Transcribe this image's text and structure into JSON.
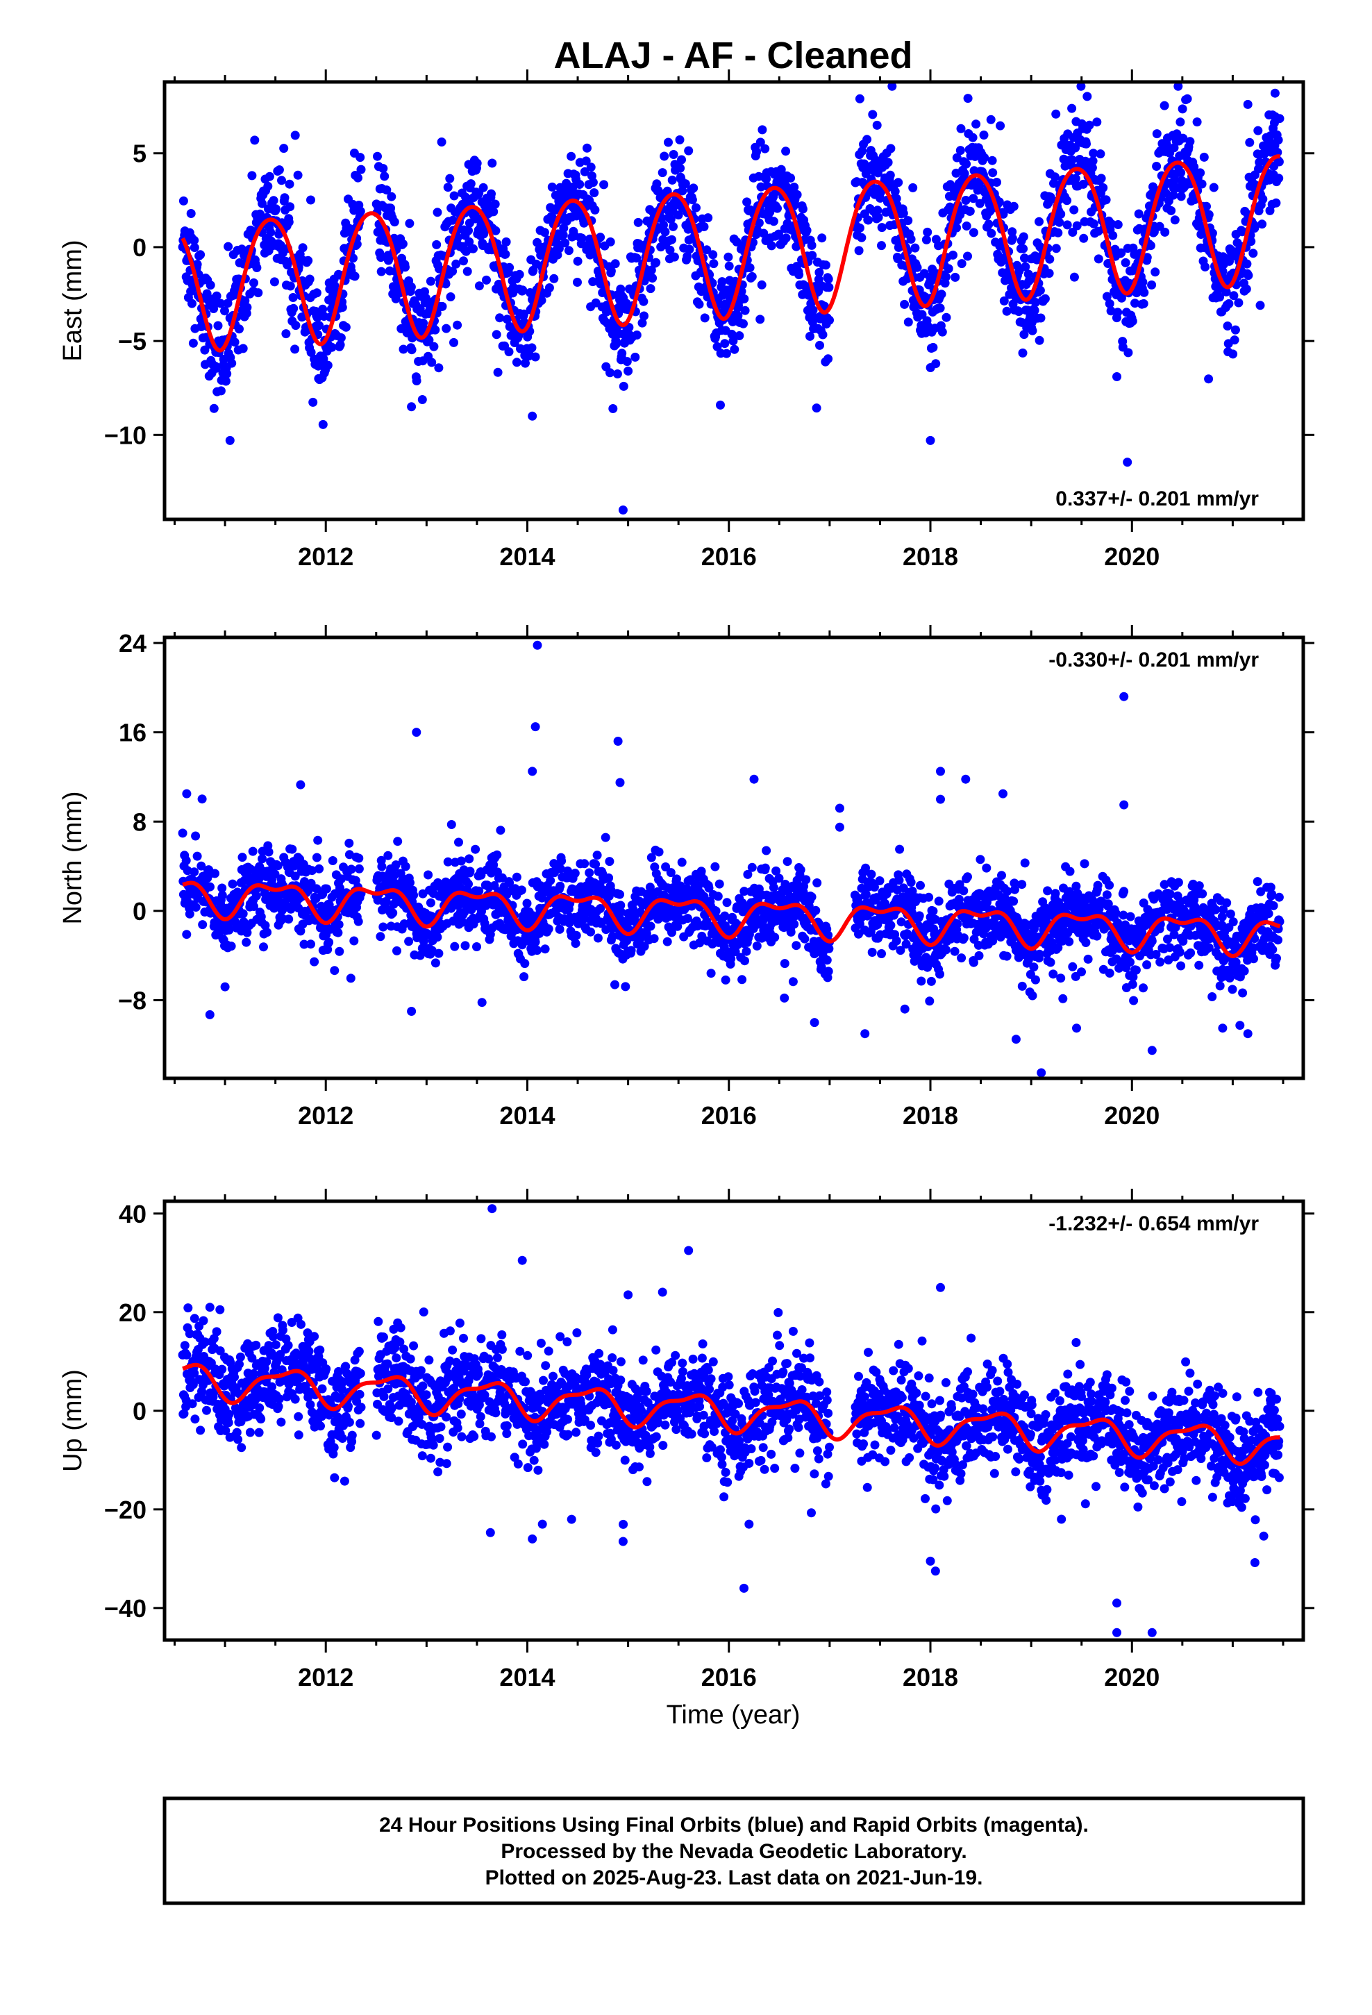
{
  "title": "ALAJ  - AF - Cleaned",
  "colors": {
    "points": "#0000ff",
    "fit": "#ff0000"
  },
  "chart_data": [
    {
      "type": "scatter",
      "panel": "east",
      "ylabel": "East (mm)",
      "xlim": [
        2010.4,
        2021.7
      ],
      "ylim": [
        -14.5,
        8.8
      ],
      "yticks": [
        -10,
        -5,
        0,
        5
      ],
      "xticks": [
        2012,
        2014,
        2016,
        2018,
        2020
      ],
      "rate_text": "0.337+/- 0.201 mm/yr",
      "rate_position": "bottom-right",
      "trend": {
        "t0": 2016.0,
        "offset": -0.05,
        "rate": 0.337,
        "annual_amp": 3.4,
        "annual_peak": 0.45,
        "semi_amp": 0.35,
        "semi_peak": 0.2
      },
      "scatter_sigma": 1.5,
      "x_range": [
        2010.58,
        2021.47
      ],
      "gaps": [
        [
          2012.35,
          2012.5
        ],
        [
          2017.0,
          2017.25
        ]
      ],
      "outliers": [
        [
          2011.05,
          -10.3
        ],
        [
          2012.85,
          -8.5
        ],
        [
          2014.05,
          -9.0
        ],
        [
          2014.95,
          -14.0
        ],
        [
          2014.85,
          -8.6
        ],
        [
          2013.15,
          5.6
        ],
        [
          2017.3,
          7.9
        ],
        [
          2018.0,
          -10.3
        ],
        [
          2019.85,
          -6.9
        ],
        [
          2020.55,
          7.9
        ],
        [
          2021.42,
          8.2
        ],
        [
          2021.15,
          7.6
        ]
      ]
    },
    {
      "type": "scatter",
      "panel": "north",
      "ylabel": "North (mm)",
      "xlim": [
        2010.4,
        2021.7
      ],
      "ylim": [
        -15.0,
        24.5
      ],
      "yticks": [
        -8,
        0,
        8,
        16,
        24
      ],
      "xticks": [
        2012,
        2014,
        2016,
        2018,
        2020
      ],
      "rate_text": "-0.330+/- 0.201 mm/yr",
      "rate_position": "top-right",
      "trend": {
        "t0": 2016.0,
        "offset": -0.3,
        "rate": -0.33,
        "annual_amp": 1.4,
        "annual_peak": 0.5,
        "semi_amp": 0.7,
        "semi_peak": 0.25
      },
      "scatter_sigma": 1.8,
      "x_range": [
        2010.58,
        2021.47
      ],
      "gaps": [
        [
          2012.35,
          2012.5
        ],
        [
          2017.0,
          2017.25
        ]
      ],
      "outliers": [
        [
          2010.62,
          10.5
        ],
        [
          2010.85,
          -9.3
        ],
        [
          2011.0,
          -6.8
        ],
        [
          2011.75,
          11.3
        ],
        [
          2012.9,
          16.0
        ],
        [
          2012.85,
          -9.0
        ],
        [
          2013.55,
          -8.2
        ],
        [
          2014.1,
          23.8
        ],
        [
          2014.08,
          16.5
        ],
        [
          2014.05,
          12.5
        ],
        [
          2014.9,
          15.2
        ],
        [
          2014.92,
          11.5
        ],
        [
          2016.25,
          11.8
        ],
        [
          2017.1,
          9.2
        ],
        [
          2017.1,
          7.5
        ],
        [
          2018.1,
          12.5
        ],
        [
          2018.1,
          10.0
        ],
        [
          2018.35,
          11.8
        ],
        [
          2018.72,
          10.5
        ],
        [
          2019.1,
          -14.5
        ],
        [
          2019.45,
          -10.5
        ],
        [
          2019.92,
          19.2
        ],
        [
          2019.92,
          9.5
        ],
        [
          2020.2,
          -12.5
        ],
        [
          2020.9,
          -10.5
        ],
        [
          2021.15,
          -11.0
        ],
        [
          2016.85,
          -10.0
        ],
        [
          2017.35,
          -11.0
        ],
        [
          2018.85,
          -11.5
        ]
      ]
    },
    {
      "type": "scatter",
      "panel": "up",
      "ylabel": "Up (mm)",
      "xlabel": "Time (year)",
      "xlim": [
        2010.4,
        2021.7
      ],
      "ylim": [
        -46.5,
        42.5
      ],
      "yticks": [
        -40,
        -20,
        0,
        20,
        40
      ],
      "xticks": [
        2012,
        2014,
        2016,
        2018,
        2020
      ],
      "rate_text": "-1.232+/- 0.654 mm/yr",
      "rate_position": "top-right",
      "trend": {
        "t0": 2016.0,
        "offset": -0.2,
        "rate": -1.232,
        "annual_amp": 3.2,
        "annual_peak": 0.6,
        "semi_amp": 1.2,
        "semi_peak": 0.3
      },
      "scatter_sigma": 5.0,
      "x_range": [
        2010.58,
        2021.47
      ],
      "gaps": [
        [
          2012.35,
          2012.5
        ],
        [
          2017.0,
          2017.25
        ]
      ],
      "outliers": [
        [
          2013.65,
          41.0
        ],
        [
          2013.95,
          30.5
        ],
        [
          2014.05,
          -26.0
        ],
        [
          2014.15,
          -23.0
        ],
        [
          2014.95,
          -26.5
        ],
        [
          2015.0,
          23.5
        ],
        [
          2015.6,
          32.5
        ],
        [
          2016.15,
          -36.0
        ],
        [
          2016.2,
          -23.0
        ],
        [
          2018.05,
          -32.5
        ],
        [
          2018.0,
          -30.5
        ],
        [
          2018.1,
          25.0
        ],
        [
          2019.85,
          -39.0
        ],
        [
          2019.85,
          -45.0
        ],
        [
          2020.2,
          -45.0
        ],
        [
          2019.3,
          -22.0
        ],
        [
          2010.85,
          21.0
        ],
        [
          2010.95,
          20.5
        ]
      ]
    }
  ],
  "caption": {
    "line1": "24 Hour Positions Using Final Orbits (blue) and Rapid Orbits (magenta).",
    "line2": "Processed by the Nevada Geodetic Laboratory.",
    "line3": "Plotted on 2025-Aug-23. Last data on 2021-Jun-19."
  }
}
